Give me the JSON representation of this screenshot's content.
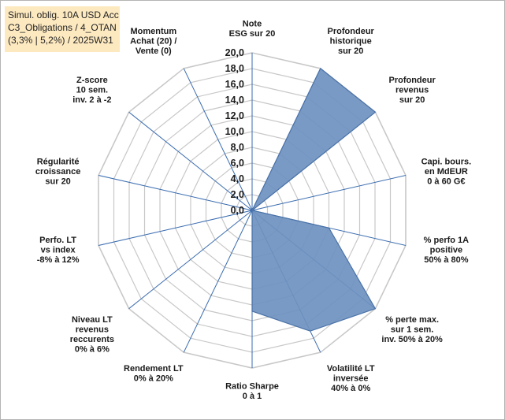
{
  "title_box": {
    "line1": "Simul. oblig. 10A USD Acc",
    "line2": "C3_Obligations / 4_OTAN",
    "line3": "(3,3% | 5,2%) / 2025W31"
  },
  "chart_data": {
    "type": "radar",
    "r_min": 0,
    "r_max": 20,
    "r_ticks": [
      "0,0",
      "2,0",
      "4,0",
      "6,0",
      "8,0",
      "10,0",
      "12,0",
      "14,0",
      "16,0",
      "18,0",
      "20,0"
    ],
    "grid": true,
    "fill_color": "#6e91bf",
    "line_color": "#4a72a8",
    "grid_color": "#c8c8c8",
    "spoke_color": "#3b6db0",
    "axes": [
      {
        "label": [
          "Note",
          "ESG sur 20"
        ],
        "value": 0
      },
      {
        "label": [
          "Profondeur",
          "historique",
          "sur 20"
        ],
        "value": 20
      },
      {
        "label": [
          "Profondeur",
          "revenus",
          "sur 20"
        ],
        "value": 20
      },
      {
        "label": [
          "Capi. bours.",
          "en MdEUR",
          "0 à 60 G€"
        ],
        "value": 0
      },
      {
        "label": [
          "% perfo 1A",
          "positive",
          "50% à 80%"
        ],
        "value": 10
      },
      {
        "label": [
          "% perte max.",
          "sur 1 sem.",
          "inv. 50% à 20%"
        ],
        "value": 20
      },
      {
        "label": [
          "Volatilité LT",
          "inversée",
          "40% à 0%"
        ],
        "value": 17
      },
      {
        "label": [
          "Ratio Sharpe",
          "0 à 1"
        ],
        "value": 12.8
      },
      {
        "label": [
          "Rendement LT",
          "0% à 20%"
        ],
        "value": 0
      },
      {
        "label": [
          "Niveau LT",
          "revenus",
          "reccurents",
          "0% à 6%"
        ],
        "value": 0
      },
      {
        "label": [
          "Perfo. LT",
          "vs index",
          "-8% à 12%"
        ],
        "value": 0
      },
      {
        "label": [
          "Régularité",
          "croissance",
          "sur 20"
        ],
        "value": 0
      },
      {
        "label": [
          "Z-score",
          "10 sem.",
          "inv. 2 à -2"
        ],
        "value": 0
      },
      {
        "label": [
          "Momentum",
          "Achat (20) /",
          "Vente (0)"
        ],
        "value": 0
      }
    ]
  }
}
